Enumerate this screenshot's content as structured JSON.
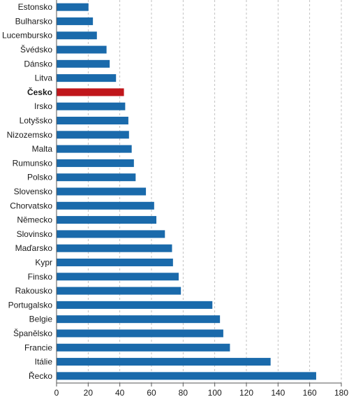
{
  "chart_data": {
    "type": "bar",
    "orientation": "horizontal",
    "categories": [
      "Estonsko",
      "Bulharsko",
      "Lucembursko",
      "Švédsko",
      "Dánsko",
      "Litva",
      "Česko",
      "Irsko",
      "Lotyšsko",
      "Nizozemsko",
      "Malta",
      "Rumunsko",
      "Polsko",
      "Slovensko",
      "Chorvatsko",
      "Německo",
      "Slovinsko",
      "Maďarsko",
      "Kypr",
      "Finsko",
      "Rakousko",
      "Portugalsko",
      "Belgie",
      "Španělsko",
      "Francie",
      "Itálie",
      "Řecko"
    ],
    "values": [
      20.2,
      23.0,
      25.5,
      31.6,
      33.6,
      37.6,
      42.6,
      43.4,
      45.4,
      45.8,
      47.5,
      48.9,
      50.0,
      56.5,
      61.7,
      63.1,
      68.5,
      73.0,
      73.6,
      77.2,
      78.6,
      98.5,
      103.3,
      105.4,
      109.6,
      135.3,
      164.1
    ],
    "highlight": "Česko",
    "xlim": [
      0,
      180
    ],
    "xticks": [
      0,
      20,
      40,
      60,
      80,
      100,
      120,
      140,
      160,
      180
    ],
    "grid": "vertical dashed",
    "title": "",
    "xlabel": "",
    "ylabel": "",
    "colors": {
      "bar": "#1a6aab",
      "highlight": "#c0161b",
      "axis": "#555555",
      "grid": "#b3b3b3"
    }
  }
}
